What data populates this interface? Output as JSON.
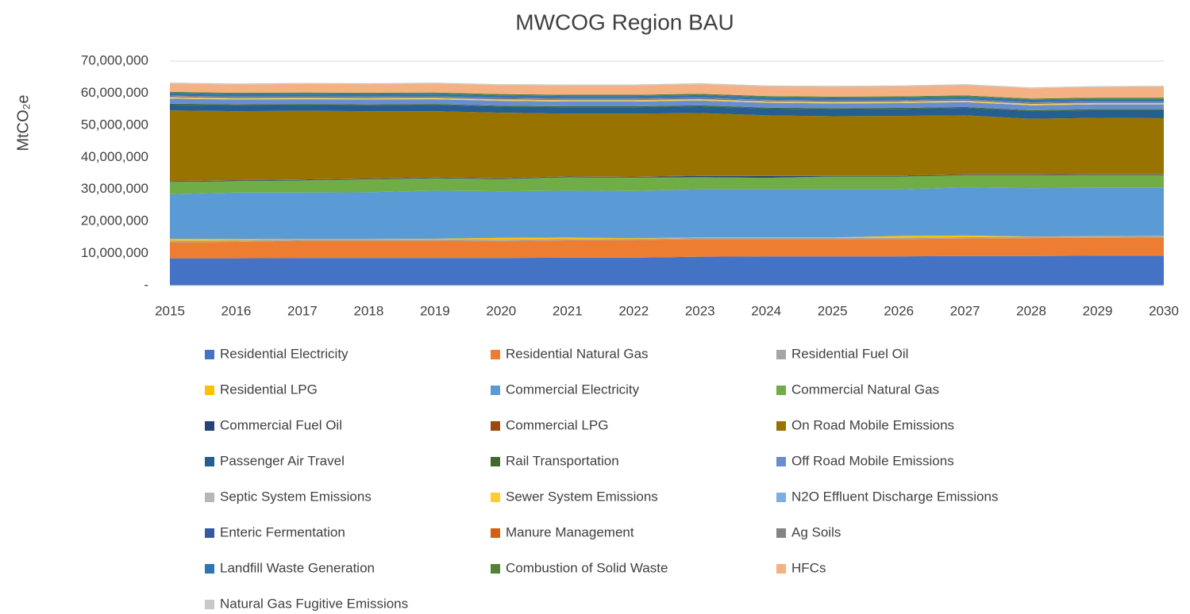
{
  "chart_data": {
    "type": "stacked_area",
    "title": "MWCOG Region BAU",
    "y_label": "MtCO₂e",
    "categories": [
      "2015",
      "2016",
      "2017",
      "2018",
      "2019",
      "2020",
      "2021",
      "2022",
      "2023",
      "2024",
      "2025",
      "2026",
      "2027",
      "2028",
      "2029",
      "2030"
    ],
    "ylim": [
      0,
      70000000
    ],
    "yticks": [
      {
        "value": 0,
        "label": "-"
      },
      {
        "value": 10000000,
        "label": "10,000,000"
      },
      {
        "value": 20000000,
        "label": "20,000,000"
      },
      {
        "value": 30000000,
        "label": "30,000,000"
      },
      {
        "value": 40000000,
        "label": "40,000,000"
      },
      {
        "value": 50000000,
        "label": "50,000,000"
      },
      {
        "value": 60000000,
        "label": "60,000,000"
      },
      {
        "value": 70000000,
        "label": "70,000,000"
      }
    ],
    "grid": true,
    "legend": "bottom",
    "series": [
      {
        "name": "Residential Electricity",
        "color": "#4472c4",
        "values": [
          8500000,
          8500000,
          8600000,
          8600000,
          8600000,
          8600000,
          8700000,
          8700000,
          9000000,
          9100000,
          9100000,
          9100000,
          9200000,
          9200000,
          9300000,
          9300000
        ]
      },
      {
        "name": "Residential Natural Gas",
        "color": "#ed7d31",
        "values": [
          5000000,
          5100000,
          5400000,
          5400000,
          5400000,
          5300000,
          5400000,
          5500000,
          5500000,
          5400000,
          5400000,
          5400000,
          5500000,
          5600000,
          5600000,
          5700000
        ]
      },
      {
        "name": "Residential Fuel Oil",
        "color": "#a5a5a5",
        "values": [
          500000,
          500000,
          400000,
          400000,
          400000,
          400000,
          400000,
          400000,
          400000,
          400000,
          400000,
          400000,
          400000,
          400000,
          400000,
          400000
        ]
      },
      {
        "name": "Residential LPG",
        "color": "#ffc000",
        "values": [
          600000,
          400000,
          100000,
          100000,
          200000,
          600000,
          500000,
          200000,
          100000,
          100000,
          100000,
          600000,
          500000,
          100000,
          100000,
          100000
        ]
      },
      {
        "name": "Commercial Electricity",
        "color": "#5b9bd5",
        "values": [
          13900000,
          14500000,
          14500000,
          14600000,
          15000000,
          14500000,
          14600000,
          14700000,
          15000000,
          15000000,
          15000000,
          14500000,
          15000000,
          15100000,
          15100000,
          15000000
        ]
      },
      {
        "name": "Commercial Natural Gas",
        "color": "#70ad47",
        "values": [
          3800000,
          3600000,
          3800000,
          4000000,
          3900000,
          3800000,
          4200000,
          4200000,
          3800000,
          3600000,
          4000000,
          4000000,
          3800000,
          4000000,
          4000000,
          4000000
        ]
      },
      {
        "name": "Commercial Fuel Oil",
        "color": "#264478",
        "values": [
          200000,
          200000,
          200000,
          200000,
          200000,
          200000,
          200000,
          200000,
          400000,
          600000,
          200000,
          200000,
          200000,
          200000,
          200000,
          200000
        ]
      },
      {
        "name": "Commercial LPG",
        "color": "#9e480e",
        "values": [
          100000,
          100000,
          100000,
          100000,
          100000,
          100000,
          100000,
          100000,
          100000,
          100000,
          100000,
          100000,
          100000,
          100000,
          100000,
          100000
        ]
      },
      {
        "name": "On Road Mobile Emissions",
        "color": "#997300",
        "values": [
          22000000,
          21500000,
          21400000,
          21000000,
          20600000,
          20400000,
          19500000,
          19600000,
          19500000,
          18800000,
          18500000,
          18600000,
          18400000,
          17300000,
          17500000,
          17400000
        ]
      },
      {
        "name": "Passenger Air Travel",
        "color": "#255e91",
        "values": [
          1800000,
          1800000,
          1800000,
          1800000,
          1900000,
          1900000,
          2000000,
          2000000,
          2100000,
          2100000,
          2200000,
          2200000,
          2300000,
          2400000,
          2400000,
          2500000
        ]
      },
      {
        "name": "Rail Transportation",
        "color": "#43682b",
        "values": [
          300000,
          300000,
          300000,
          300000,
          300000,
          300000,
          300000,
          300000,
          300000,
          300000,
          300000,
          300000,
          300000,
          300000,
          300000,
          300000
        ]
      },
      {
        "name": "Off Road Mobile Emissions",
        "color": "#698ed0",
        "values": [
          1600000,
          1500000,
          1500000,
          1500000,
          1500000,
          1500000,
          1500000,
          1500000,
          1500000,
          1500000,
          1500000,
          1500000,
          1500000,
          1500000,
          1500000,
          1500000
        ]
      },
      {
        "name": "Septic System Emissions",
        "color": "#b7b7b7",
        "values": [
          100000,
          100000,
          100000,
          100000,
          100000,
          100000,
          100000,
          100000,
          100000,
          100000,
          100000,
          100000,
          100000,
          100000,
          100000,
          100000
        ]
      },
      {
        "name": "Sewer System Emissions",
        "color": "#ffcd33",
        "values": [
          300000,
          300000,
          300000,
          300000,
          300000,
          300000,
          300000,
          300000,
          300000,
          300000,
          300000,
          300000,
          300000,
          300000,
          300000,
          300000
        ]
      },
      {
        "name": "N2O Effluent Discharge Emissions",
        "color": "#7cafdd",
        "values": [
          100000,
          100000,
          100000,
          100000,
          100000,
          100000,
          100000,
          100000,
          100000,
          100000,
          100000,
          100000,
          100000,
          100000,
          100000,
          100000
        ]
      },
      {
        "name": "Enteric Fermentation",
        "color": "#335aa1",
        "values": [
          200000,
          200000,
          200000,
          200000,
          200000,
          200000,
          200000,
          200000,
          200000,
          200000,
          200000,
          200000,
          200000,
          200000,
          200000,
          200000
        ]
      },
      {
        "name": "Manure Management",
        "color": "#d26012",
        "values": [
          100000,
          100000,
          100000,
          100000,
          100000,
          100000,
          100000,
          100000,
          100000,
          100000,
          100000,
          100000,
          100000,
          100000,
          100000,
          100000
        ]
      },
      {
        "name": "Ag Soils",
        "color": "#848484",
        "values": [
          100000,
          100000,
          100000,
          100000,
          100000,
          100000,
          100000,
          100000,
          100000,
          100000,
          100000,
          100000,
          100000,
          100000,
          100000,
          100000
        ]
      },
      {
        "name": "Landfill Waste Generation",
        "color": "#2e75b6",
        "values": [
          800000,
          800000,
          800000,
          800000,
          800000,
          800000,
          800000,
          800000,
          800000,
          800000,
          800000,
          800000,
          800000,
          800000,
          800000,
          800000
        ]
      },
      {
        "name": "Combustion of Solid Waste",
        "color": "#548235",
        "values": [
          400000,
          400000,
          400000,
          400000,
          400000,
          400000,
          400000,
          400000,
          400000,
          400000,
          400000,
          400000,
          400000,
          400000,
          400000,
          400000
        ]
      },
      {
        "name": "HFCs",
        "color": "#f4b183",
        "values": [
          2600000,
          2600000,
          2700000,
          2700000,
          2800000,
          2800000,
          2900000,
          2900000,
          3000000,
          3000000,
          3100000,
          3100000,
          3200000,
          3200000,
          3300000,
          3400000
        ]
      },
      {
        "name": "Natural Gas Fugitive Emissions",
        "color": "#c9c9c9",
        "values": [
          300000,
          300000,
          300000,
          300000,
          300000,
          300000,
          300000,
          300000,
          300000,
          300000,
          300000,
          300000,
          300000,
          300000,
          300000,
          300000
        ]
      }
    ]
  }
}
